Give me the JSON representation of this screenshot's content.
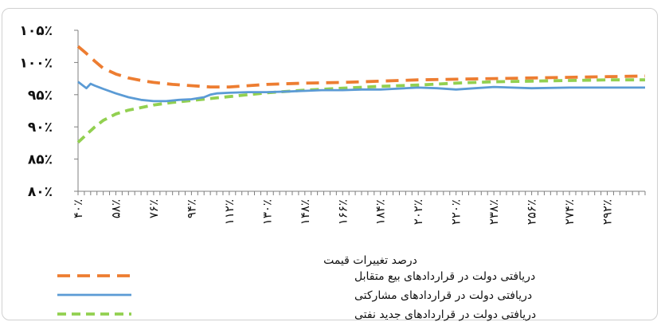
{
  "chart_data": {
    "type": "line",
    "xlabel": "درصد تغییرات قیمت",
    "ylabel": "",
    "ylim": [
      80,
      105
    ],
    "yticks": [
      80,
      85,
      90,
      95,
      100,
      105
    ],
    "ytick_labels": [
      "۸۰٪",
      "۸۵٪",
      "۹۰٪",
      "۹۵٪",
      "۱۰۰٪",
      "۱۰۵٪"
    ],
    "xlim": [
      40,
      310
    ],
    "xticks": [
      40,
      58,
      76,
      94,
      112,
      130,
      148,
      166,
      184,
      202,
      220,
      238,
      256,
      274,
      292
    ],
    "xtick_labels": [
      "۴۰٪",
      "۵۸٪",
      "۷۶٪",
      "۹۴٪",
      "۱۱۲٪",
      "۱۳۰٪",
      "۱۴۸٪",
      "۱۶۶٪",
      "۱۸۴٪",
      "۲۰۲٪",
      "۲۲۰٪",
      "۲۳۸٪",
      "۲۵۶٪",
      "۲۷۴٪",
      "۲۹۲٪"
    ],
    "grid": false,
    "legend_position": "bottom",
    "series": [
      {
        "name": "دریافتی دولت در قراردادهای بیع متقابل",
        "color": "#ED7D31",
        "dash": "long-dash",
        "x": [
          40,
          44,
          48,
          52,
          58,
          64,
          70,
          76,
          85,
          94,
          103,
          112,
          121,
          130,
          148,
          166,
          184,
          202,
          220,
          238,
          256,
          274,
          292,
          310
        ],
        "y": [
          102.5,
          101.4,
          100.2,
          99.1,
          98.2,
          97.6,
          97.2,
          96.9,
          96.6,
          96.4,
          96.2,
          96.2,
          96.4,
          96.6,
          96.8,
          96.9,
          97.1,
          97.3,
          97.4,
          97.5,
          97.6,
          97.7,
          97.8,
          97.9
        ]
      },
      {
        "name": "دریافتی دولت در قراردادهای مشارکتی",
        "color": "#5B9BD5",
        "dash": "solid",
        "x": [
          40,
          42,
          44,
          46,
          48,
          52,
          58,
          64,
          70,
          76,
          82,
          88,
          94,
          100,
          103,
          106,
          112,
          121,
          130,
          140,
          148,
          156,
          166,
          175,
          184,
          202,
          211,
          220,
          229,
          238,
          256,
          274,
          292,
          310
        ],
        "y": [
          97.0,
          96.5,
          96.0,
          96.7,
          96.4,
          95.9,
          95.2,
          94.6,
          94.2,
          94.0,
          94.0,
          94.2,
          94.3,
          94.6,
          95.0,
          95.2,
          95.3,
          95.4,
          95.4,
          95.5,
          95.6,
          95.7,
          95.7,
          95.8,
          95.8,
          96.1,
          96.0,
          95.8,
          96.0,
          96.2,
          96.0,
          96.1,
          96.1,
          96.1
        ]
      },
      {
        "name": "دریافتی دولت در قراردادهای جدید نفتی",
        "color": "#92D050",
        "dash": "short-dash",
        "x": [
          40,
          44,
          48,
          52,
          58,
          64,
          70,
          76,
          85,
          94,
          103,
          112,
          121,
          130,
          148,
          166,
          184,
          202,
          220,
          238,
          256,
          274,
          292,
          310
        ],
        "y": [
          87.6,
          88.8,
          90.0,
          91.0,
          92.0,
          92.6,
          93.0,
          93.4,
          93.8,
          94.1,
          94.4,
          94.7,
          95.0,
          95.3,
          95.7,
          96.0,
          96.3,
          96.5,
          96.8,
          97.0,
          97.1,
          97.2,
          97.3,
          97.3
        ]
      }
    ]
  }
}
